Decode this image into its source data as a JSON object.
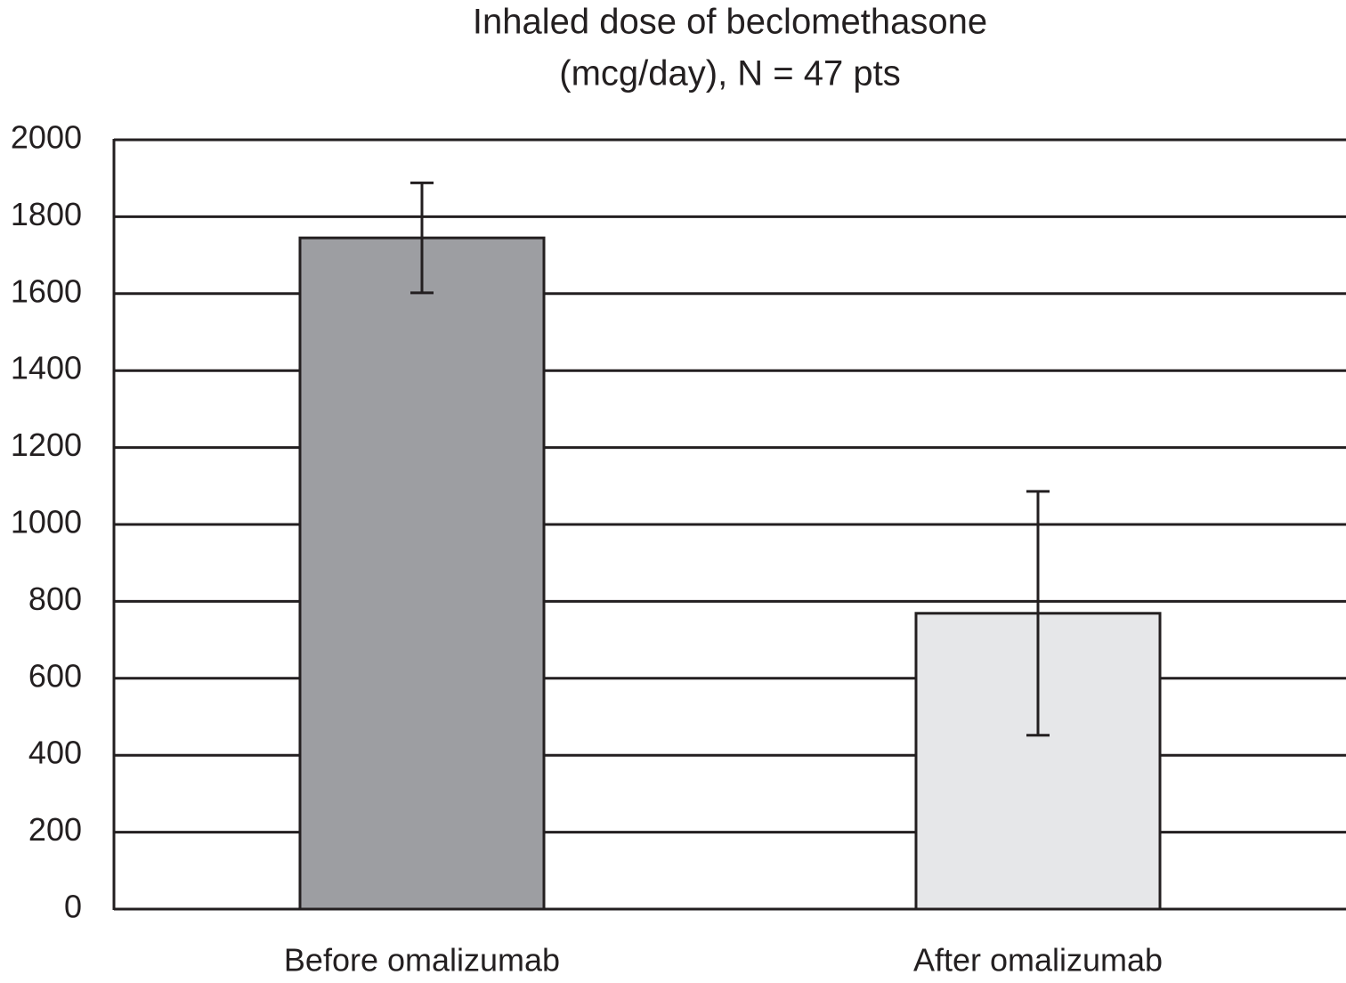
{
  "chart_data": {
    "type": "bar",
    "title": [
      "Inhaled dose of beclomethasone",
      "(mcg/day), N = 47 pts"
    ],
    "categories": [
      "Before omalizumab",
      "After omalizumab"
    ],
    "values": [
      1745,
      769
    ],
    "errors": [
      143,
      317
    ],
    "colors": [
      "#9d9ea2",
      "#e6e7e9"
    ],
    "ylim": [
      0,
      2000
    ],
    "yticks": [
      0,
      200,
      400,
      600,
      800,
      1000,
      1200,
      1400,
      1600,
      1800,
      2000
    ],
    "grid": true
  }
}
